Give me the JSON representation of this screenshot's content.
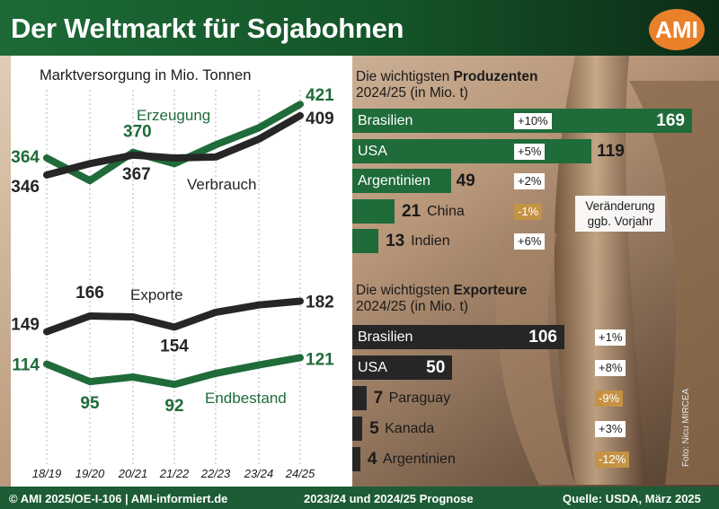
{
  "title": "Der Weltmarkt für Sojabohnen",
  "logo": "AMI",
  "colors": {
    "green": "#1f6b3a",
    "dark": "#262626",
    "negative_change": "#c59246",
    "footer": "#1d5c35",
    "logo": "#e9802a"
  },
  "chart_data": [
    {
      "type": "line",
      "title": "Marktversorgung in Mio. Tonnen",
      "x": [
        "18/19",
        "19/20",
        "20/21",
        "21/22",
        "22/23",
        "23/24",
        "24/25"
      ],
      "series": [
        {
          "name": "Erzeugung",
          "color": "#1f6b3a",
          "values": [
            364,
            340,
            370,
            358,
            378,
            396,
            421
          ]
        },
        {
          "name": "Verbrauch",
          "color": "#262626",
          "values": [
            346,
            358,
            367,
            364,
            365,
            384,
            409
          ]
        }
      ],
      "labels": [
        {
          "series": "Erzeugung",
          "index": 0,
          "text": "364"
        },
        {
          "series": "Verbrauch",
          "index": 0,
          "text": "346"
        },
        {
          "series": "Erzeugung",
          "index": 2,
          "text": "370"
        },
        {
          "series": "Verbrauch",
          "index": 2,
          "text": "367"
        },
        {
          "series": "Erzeugung",
          "index": 6,
          "text": "421"
        },
        {
          "series": "Verbrauch",
          "index": 6,
          "text": "409"
        }
      ],
      "ylim": [
        300,
        430
      ]
    },
    {
      "type": "line",
      "x": [
        "18/19",
        "19/20",
        "20/21",
        "21/22",
        "22/23",
        "23/24",
        "24/25"
      ],
      "series": [
        {
          "name": "Exporte",
          "color": "#262626",
          "values": [
            149,
            166,
            165,
            154,
            170,
            178,
            182
          ]
        },
        {
          "name": "Endbestand",
          "color": "#1f6b3a",
          "values": [
            114,
            95,
            100,
            92,
            104,
            113,
            121
          ]
        }
      ],
      "labels": [
        {
          "series": "Exporte",
          "index": 0,
          "text": "149"
        },
        {
          "series": "Exporte",
          "index": 1,
          "text": "166"
        },
        {
          "series": "Exporte",
          "index": 3,
          "text": "154"
        },
        {
          "series": "Exporte",
          "index": 6,
          "text": "182"
        },
        {
          "series": "Endbestand",
          "index": 0,
          "text": "114"
        },
        {
          "series": "Endbestand",
          "index": 1,
          "text": "95"
        },
        {
          "series": "Endbestand",
          "index": 3,
          "text": "92"
        },
        {
          "series": "Endbestand",
          "index": 6,
          "text": "121"
        }
      ],
      "ylim": [
        60,
        200
      ]
    },
    {
      "type": "bar",
      "title": "Die wichtigsten Produzenten 2024/25 (in Mio. t)",
      "categories": [
        "Brasilien",
        "USA",
        "Argentinien",
        "China",
        "Indien"
      ],
      "values": [
        169,
        119,
        49,
        21,
        13
      ],
      "changes": [
        "+10%",
        "+5%",
        "+2%",
        "-1%",
        "+6%"
      ]
    },
    {
      "type": "bar",
      "title": "Die wichtigsten Exporteure 2024/25 (in Mio. t)",
      "categories": [
        "Brasilien",
        "USA",
        "Paraguay",
        "Kanada",
        "Argentinien"
      ],
      "values": [
        106,
        50,
        7,
        5,
        4
      ],
      "changes": [
        "+1%",
        "+8%",
        "-9%",
        "+3%",
        "-12%"
      ]
    }
  ],
  "producers_title": {
    "prefix": "Die wichtigsten ",
    "bold": "Produzenten",
    "line2": "2024/25 (in Mio. t)"
  },
  "exporters_title": {
    "prefix": "Die wichtigsten ",
    "bold": "Exporteure",
    "line2": "2024/25 (in Mio. t)"
  },
  "change_note": "Veränderung ggb. Vorjahr",
  "footer": {
    "left": "© AMI 2025/OE-I-106 | AMI-informiert.de",
    "center": "2023/24 und 2024/25 Prognose",
    "right": "Quelle: USDA, März 2025"
  },
  "photo_credit": "Foto: Nicu MIRCEA"
}
